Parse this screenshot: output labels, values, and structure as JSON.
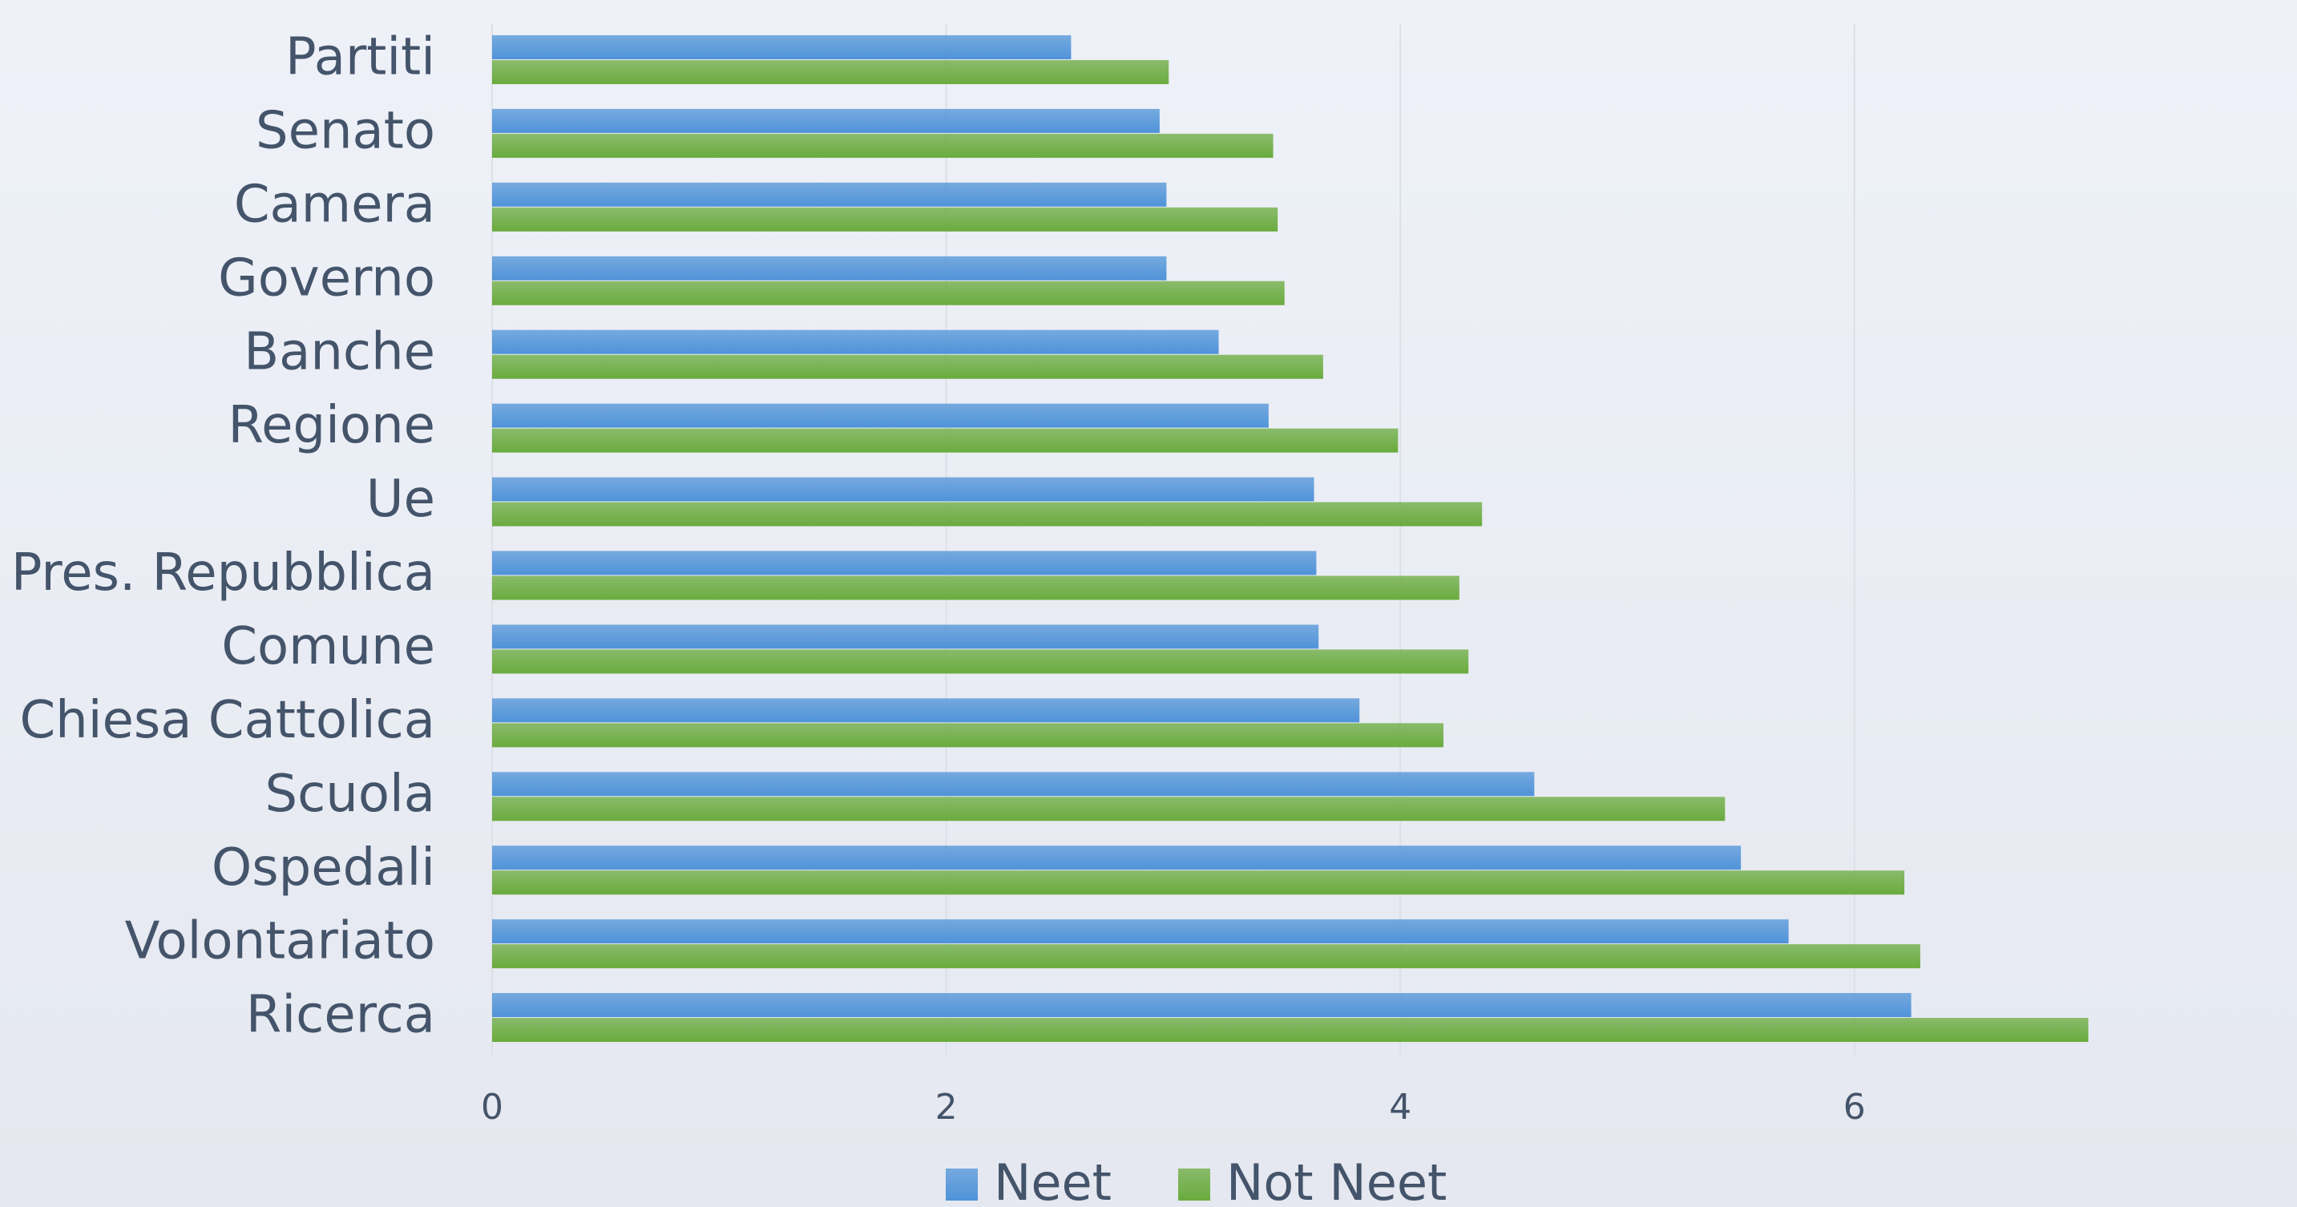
{
  "chart_data": {
    "type": "barh",
    "categories": [
      "Partiti",
      "Senato",
      "Camera",
      "Governo",
      "Banche",
      "Regione",
      "Ue",
      "Pres. Repubblica",
      "Comune",
      "Chiesa Cattolica",
      "Scuola",
      "Ospedali",
      "Volontariato",
      "Ricerca"
    ],
    "series": [
      {
        "name": "Neet",
        "color": "#4f93d8",
        "values": [
          2.55,
          2.94,
          2.97,
          2.97,
          3.2,
          3.42,
          3.62,
          3.63,
          3.64,
          3.82,
          4.59,
          5.5,
          5.71,
          6.25
        ]
      },
      {
        "name": "Not Neet",
        "color": "#6aab3e",
        "values": [
          2.98,
          3.44,
          3.46,
          3.49,
          3.66,
          3.99,
          4.36,
          4.26,
          4.3,
          4.19,
          5.43,
          6.22,
          6.29,
          7.03
        ]
      }
    ],
    "xlim": [
      0,
      7.8
    ],
    "xticks": [
      0,
      2,
      4,
      6
    ],
    "grid": true,
    "legend": "bottom"
  }
}
